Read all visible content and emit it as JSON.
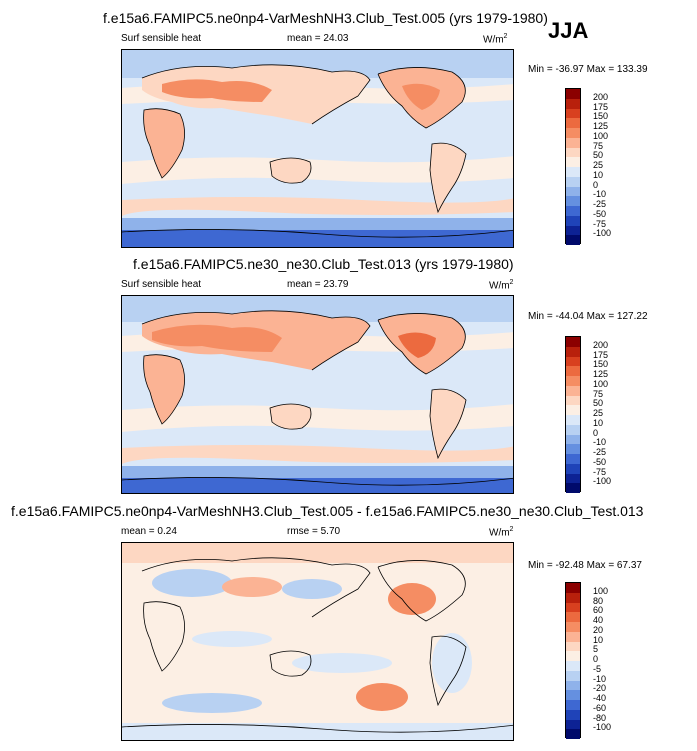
{
  "season": "JJA",
  "units_label": "W/m",
  "units_sup": "2",
  "panels": [
    {
      "title": "f.e15a6.FAMIPC5.ne0np4-VarMeshNH3.Club_Test.005 (yrs 1979-1980)",
      "left_label": "Surf sensible heat",
      "stat_label": "mean =  24.03",
      "minmax": "Min = -36.97 Max = 133.39"
    },
    {
      "title": "f.e15a6.FAMIPC5.ne30_ne30.Club_Test.013 (yrs 1979-1980)",
      "left_label": "Surf sensible heat",
      "stat_label": "mean =  23.79",
      "minmax": "Min = -44.04 Max = 127.22"
    },
    {
      "title": "f.e15a6.FAMIPC5.ne0np4-VarMeshNH3.Club_Test.005 - f.e15a6.FAMIPC5.ne30_ne30.Club_Test.013",
      "stat_label_1": "mean =   0.24",
      "stat_label_2": "rmse =   5.70",
      "minmax": "Min = -92.48 Max =  67.37"
    }
  ],
  "colorbar_abs": {
    "labels": [
      "200",
      "175",
      "150",
      "125",
      "100",
      "75",
      "50",
      "25",
      "10",
      "0",
      "-10",
      "-25",
      "-50",
      "-75",
      "-100"
    ],
    "colors": [
      "#8b0000",
      "#b8200c",
      "#d8401f",
      "#ec6a3f",
      "#f58d63",
      "#fbb394",
      "#fdd7c2",
      "#fcefe4",
      "#dbe8f8",
      "#b8d1f2",
      "#8fb2ea",
      "#6590e0",
      "#3e68d2",
      "#1f43b8",
      "#0d2294",
      "#000a6b"
    ]
  },
  "colorbar_diff": {
    "labels": [
      "100",
      "80",
      "60",
      "40",
      "20",
      "10",
      "5",
      "0",
      "-5",
      "-10",
      "-20",
      "-40",
      "-60",
      "-80",
      "-100"
    ],
    "colors": [
      "#8b0000",
      "#b8200c",
      "#d8401f",
      "#ec6a3f",
      "#f58d63",
      "#fbb394",
      "#fdd7c2",
      "#fcefe4",
      "#dbe8f8",
      "#b8d1f2",
      "#8fb2ea",
      "#6590e0",
      "#3e68d2",
      "#1f43b8",
      "#0d2294",
      "#000a6b"
    ]
  },
  "chart_data": [
    {
      "type": "heatmap",
      "title": "f.e15a6.FAMIPC5.ne0np4-VarMeshNH3.Club_Test.005 (yrs 1979-1980)",
      "variable": "Surf sensible heat",
      "units": "W/m2",
      "mean": 24.03,
      "min": -36.97,
      "max": 133.39,
      "levels": [
        -100,
        -75,
        -50,
        -25,
        -10,
        0,
        10,
        25,
        50,
        75,
        100,
        125,
        150,
        175,
        200
      ]
    },
    {
      "type": "heatmap",
      "title": "f.e15a6.FAMIPC5.ne30_ne30.Club_Test.013 (yrs 1979-1980)",
      "variable": "Surf sensible heat",
      "units": "W/m2",
      "mean": 23.79,
      "min": -44.04,
      "max": 127.22,
      "levels": [
        -100,
        -75,
        -50,
        -25,
        -10,
        0,
        10,
        25,
        50,
        75,
        100,
        125,
        150,
        175,
        200
      ]
    },
    {
      "type": "heatmap",
      "title": "f.e15a6.FAMIPC5.ne0np4-VarMeshNH3.Club_Test.005 - f.e15a6.FAMIPC5.ne30_ne30.Club_Test.013",
      "units": "W/m2",
      "mean": 0.24,
      "rmse": 5.7,
      "min": -92.48,
      "max": 67.37,
      "levels": [
        -100,
        -80,
        -60,
        -40,
        -20,
        -10,
        -5,
        0,
        5,
        10,
        20,
        40,
        60,
        80,
        100
      ]
    }
  ]
}
